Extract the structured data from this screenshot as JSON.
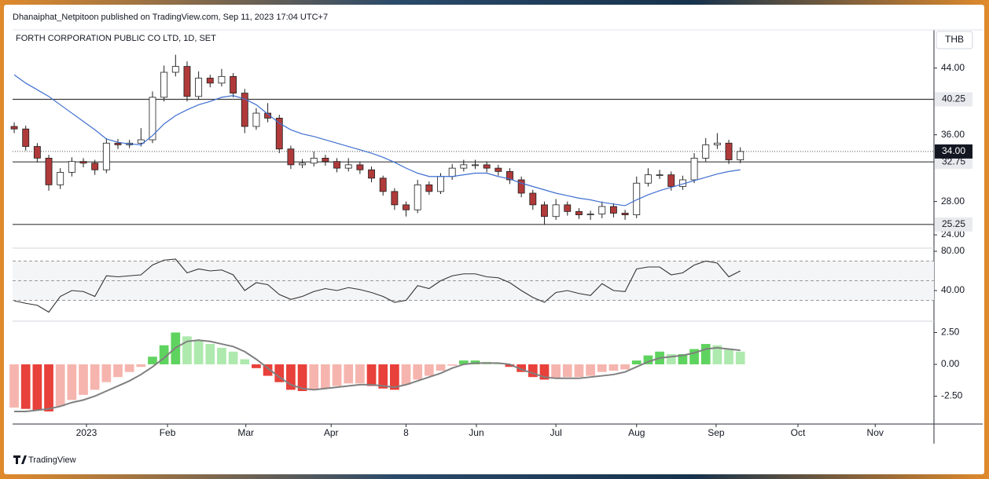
{
  "header": {
    "published": "Dhanaiphat_Netpitoon published on TradingView.com, Sep 11, 2023 17:04 UTC+7",
    "currency": "THB",
    "brand": "TradingView"
  },
  "chart_data": [
    {
      "type": "candlestick",
      "title": "FORTH CORPORATION PUBLIC CO LTD, 1D, SET",
      "x": [
        0,
        1,
        2,
        3,
        4,
        5,
        6,
        7,
        8,
        9,
        10,
        11,
        12,
        13,
        14,
        15,
        16,
        17,
        18,
        19,
        20,
        21,
        22,
        23,
        24,
        25,
        26,
        27,
        28,
        29,
        30,
        31,
        32,
        33,
        34,
        35,
        36,
        37,
        38,
        39,
        40,
        41,
        42,
        43,
        44,
        45,
        46,
        47,
        48,
        49,
        50,
        51,
        52,
        53,
        54,
        55,
        56,
        57,
        58,
        59,
        60,
        61,
        62,
        63
      ],
      "open": [
        37.0,
        36.7,
        34.6,
        33.2,
        30.0,
        31.5,
        32.8,
        32.6,
        31.8,
        35.0,
        34.8,
        35.0,
        35.4,
        40.5,
        43.5,
        44.2,
        40.6,
        42.8,
        42.2,
        43.0,
        41.0,
        37.0,
        38.6,
        38.0,
        34.3,
        32.4,
        32.6,
        33.2,
        32.8,
        32.0,
        32.4,
        31.8,
        30.8,
        29.2,
        27.6,
        27.0,
        30.0,
        29.2,
        31.0,
        32.0,
        32.4,
        32.4,
        32.0,
        31.6,
        30.6,
        29.0,
        27.6,
        26.2,
        27.6,
        26.8,
        26.4,
        26.5,
        27.4,
        26.6,
        26.4,
        30.2,
        31.2,
        31.2,
        29.8,
        30.6,
        33.2,
        34.8,
        35.0,
        33.0
      ],
      "high": [
        37.5,
        37.1,
        35.0,
        33.6,
        32.0,
        33.3,
        33.2,
        33.0,
        35.6,
        35.5,
        35.4,
        36.8,
        41.2,
        44.3,
        45.6,
        44.8,
        43.6,
        43.2,
        43.9,
        43.4,
        41.5,
        39.2,
        39.8,
        38.4,
        34.7,
        33.1,
        34.0,
        33.6,
        33.2,
        33.2,
        32.8,
        32.2,
        31.1,
        29.6,
        28.0,
        30.6,
        30.4,
        31.4,
        32.5,
        33.0,
        33.0,
        32.8,
        32.4,
        32.0,
        31.0,
        29.4,
        28.0,
        28.3,
        28.0,
        27.2,
        26.9,
        28.0,
        27.8,
        27.0,
        31.0,
        32.0,
        31.8,
        31.6,
        31.1,
        33.8,
        35.6,
        36.2,
        35.4,
        34.5
      ],
      "low": [
        36.2,
        34.1,
        32.7,
        29.3,
        29.5,
        31.0,
        32.1,
        31.2,
        31.4,
        34.3,
        34.4,
        34.6,
        35.0,
        40.0,
        43.0,
        40.0,
        40.2,
        41.7,
        41.8,
        40.5,
        36.2,
        36.6,
        37.5,
        33.8,
        31.9,
        32.0,
        32.2,
        32.3,
        31.5,
        31.6,
        31.3,
        30.3,
        28.7,
        27.0,
        26.2,
        26.6,
        28.8,
        28.9,
        30.6,
        31.6,
        31.9,
        31.5,
        31.1,
        30.1,
        28.5,
        27.0,
        25.2,
        25.8,
        26.3,
        25.9,
        25.8,
        26.0,
        26.1,
        25.8,
        26.0,
        29.8,
        30.7,
        29.3,
        29.4,
        30.2,
        32.8,
        34.3,
        32.5,
        32.6
      ],
      "close": [
        36.7,
        34.6,
        33.2,
        30.0,
        31.5,
        32.8,
        32.6,
        31.8,
        35.0,
        34.8,
        35.0,
        35.4,
        40.5,
        43.5,
        44.2,
        40.6,
        42.8,
        42.2,
        43.0,
        41.0,
        37.0,
        38.6,
        38.0,
        34.3,
        32.4,
        32.6,
        33.2,
        32.8,
        32.0,
        32.4,
        31.8,
        30.8,
        29.2,
        27.6,
        27.0,
        30.0,
        29.2,
        31.0,
        32.0,
        32.4,
        32.4,
        32.0,
        31.6,
        30.6,
        29.0,
        27.6,
        26.2,
        27.6,
        26.8,
        26.4,
        26.5,
        27.4,
        26.6,
        26.4,
        30.2,
        31.2,
        31.2,
        29.8,
        30.6,
        33.2,
        34.8,
        35.0,
        33.0,
        34.0
      ],
      "ma": [
        43.2,
        42.2,
        41.4,
        40.6,
        39.6,
        38.6,
        37.6,
        36.6,
        35.5,
        35.1,
        34.9,
        34.8,
        35.9,
        37.3,
        38.3,
        39.0,
        39.6,
        40.0,
        40.5,
        40.7,
        40.3,
        39.6,
        38.5,
        37.4,
        36.6,
        36.1,
        35.8,
        35.4,
        35.0,
        34.6,
        34.2,
        33.8,
        33.3,
        32.7,
        32.0,
        31.4,
        31.0,
        31.0,
        31.0,
        31.2,
        31.4,
        31.4,
        31.0,
        30.7,
        30.2,
        29.8,
        29.4,
        29.0,
        28.7,
        28.4,
        28.2,
        27.9,
        27.7,
        27.5,
        28.2,
        28.8,
        29.3,
        29.7,
        30.1,
        30.5,
        30.9,
        31.3,
        31.6,
        31.8
      ],
      "colors": {
        "up": "#ffffff",
        "down": "#b03a3a",
        "outline": "#1f1f1f",
        "ma": "#3f6fd0",
        "level": "#3a3a3a"
      },
      "levels": [
        40.25,
        32.75,
        25.25
      ],
      "last": {
        "value": 34,
        "label": "34.00"
      },
      "xlim": [
        -0.14,
        79.8
      ],
      "xticks": [
        {
          "value": 6.27,
          "label": "2023"
        },
        {
          "value": 13.3,
          "label": "Feb"
        },
        {
          "value": 20.1,
          "label": "Mar"
        },
        {
          "value": 27.5,
          "label": "Apr"
        },
        {
          "value": 34.0,
          "label": "8"
        },
        {
          "value": 40.1,
          "label": "Jun"
        },
        {
          "value": 47.0,
          "label": "Jul"
        },
        {
          "value": 54.0,
          "label": "Aug"
        },
        {
          "value": 60.9,
          "label": "Sep"
        },
        {
          "value": 68.0,
          "label": "Oct"
        },
        {
          "value": 74.7,
          "label": "Nov"
        }
      ],
      "ylim": [
        22.5,
        48.4
      ],
      "yticks": [
        {
          "value": 24,
          "label": "24.00"
        },
        {
          "value": 28,
          "label": "28.00"
        },
        {
          "value": 36,
          "label": "36.00"
        },
        {
          "value": 44,
          "label": "44.00"
        }
      ]
    },
    {
      "type": "line",
      "values": [
        29.6,
        27,
        25,
        18,
        34,
        40,
        39,
        34,
        55,
        54,
        55,
        56,
        66,
        71,
        72,
        58,
        62,
        60,
        61,
        56,
        40,
        48,
        46,
        36,
        31,
        34,
        39,
        42,
        40,
        43,
        41,
        38,
        34,
        28,
        30,
        45,
        42,
        50,
        55,
        57,
        57,
        54,
        53,
        48,
        40,
        33,
        28,
        38,
        40,
        37,
        35,
        47,
        40,
        39,
        62,
        64,
        64,
        56,
        58,
        66,
        70,
        68,
        54,
        60
      ],
      "color": "#333333",
      "levels": [
        70,
        50,
        30
      ],
      "ylim": [
        9.6,
        81.6
      ],
      "yticks": [
        {
          "value": 40,
          "label": "40.00"
        },
        {
          "value": 80,
          "label": "80.00"
        }
      ]
    },
    {
      "type": "bar",
      "values": [
        -3.4,
        -3.5,
        -3.6,
        -3.7,
        -3.3,
        -2.8,
        -2.4,
        -2.0,
        -1.4,
        -1.0,
        -0.6,
        -0.2,
        0.6,
        1.5,
        2.5,
        2.2,
        1.9,
        1.6,
        1.3,
        1.0,
        0.4,
        -0.3,
        -0.9,
        -1.4,
        -2.0,
        -2.1,
        -2.0,
        -1.9,
        -1.7,
        -1.5,
        -1.5,
        -1.7,
        -1.9,
        -2.0,
        -1.6,
        -1.2,
        -0.9,
        -0.5,
        -0.1,
        0.3,
        0.3,
        0.2,
        0.1,
        -0.2,
        -0.6,
        -1.0,
        -1.2,
        -1.1,
        -1.0,
        -1.0,
        -0.9,
        -0.6,
        -0.5,
        -0.4,
        0.3,
        0.7,
        1.0,
        0.8,
        0.8,
        1.2,
        1.6,
        1.5,
        1.2,
        1.0
      ],
      "signal": [
        -3.7,
        -3.7,
        -3.6,
        -3.5,
        -3.3,
        -3.0,
        -2.8,
        -2.5,
        -2.1,
        -1.7,
        -1.3,
        -0.8,
        -0.2,
        0.5,
        1.3,
        1.8,
        1.9,
        1.8,
        1.6,
        1.4,
        1.0,
        0.4,
        -0.3,
        -1.0,
        -1.6,
        -1.9,
        -2.0,
        -1.9,
        -1.8,
        -1.7,
        -1.6,
        -1.6,
        -1.7,
        -1.8,
        -1.6,
        -1.3,
        -1.0,
        -0.7,
        -0.3,
        0.0,
        0.1,
        0.1,
        0.1,
        0.0,
        -0.4,
        -0.7,
        -1.0,
        -1.1,
        -1.1,
        -1.1,
        -1.0,
        -0.9,
        -0.8,
        -0.6,
        -0.2,
        0.2,
        0.5,
        0.6,
        0.7,
        0.9,
        1.2,
        1.3,
        1.2,
        1.1
      ],
      "colors": {
        "pos_up": "#5fd35f",
        "pos_down": "#aee9ae",
        "neg_down": "#e8403a",
        "neg_up": "#f5b5ae",
        "signal": "#808080"
      },
      "ylim": [
        -4.69,
        3.33
      ],
      "yticks": [
        {
          "value": -2.5,
          "label": "-2.50"
        },
        {
          "value": 0,
          "label": "0.00"
        },
        {
          "value": 2.5,
          "label": "2.50"
        }
      ]
    }
  ]
}
